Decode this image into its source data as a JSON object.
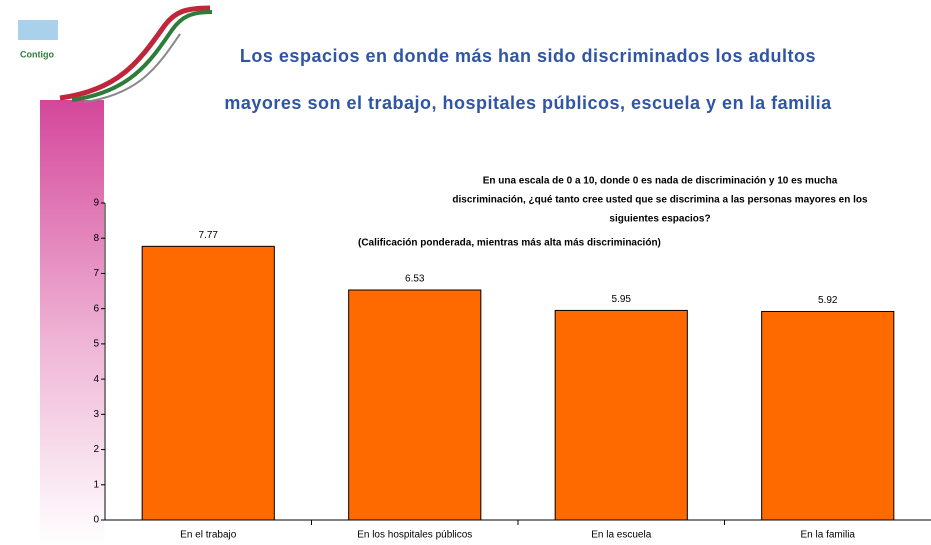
{
  "logo_text": "Contigo",
  "chart_data": {
    "type": "bar",
    "title": [
      "Los espacios en donde más han sido discriminados los adultos",
      "mayores son el trabajo, hospitales públicos, escuela y en la familia"
    ],
    "subtitle": [
      "En una escala de 0 a 10, donde 0 es nada de discriminación y 10 es mucha",
      "discriminación, ¿qué tanto cree usted que se discrimina a las personas mayores en los",
      "siguientes espacios?"
    ],
    "note": "(Calificación ponderada, mientras más alta más discriminación)",
    "categories": [
      "En el trabajo",
      "En los hospitales públicos",
      "En la escuela",
      "En la familia"
    ],
    "values": [
      7.77,
      6.53,
      5.95,
      5.92
    ],
    "color": "#ff6a00",
    "ylim": [
      0,
      9
    ],
    "yticks": [
      0,
      1,
      2,
      3,
      4,
      5,
      6,
      7,
      8,
      9
    ]
  }
}
